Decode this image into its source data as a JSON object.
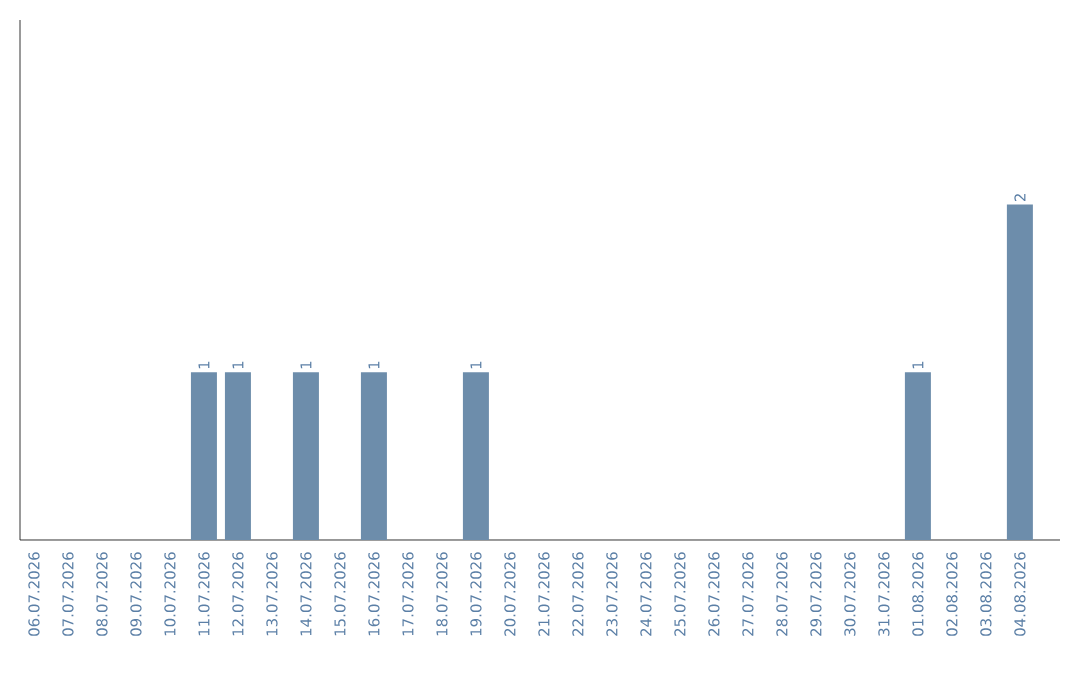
{
  "chart_data": {
    "type": "bar",
    "categories": [
      "06.07.2026",
      "07.07.2026",
      "08.07.2026",
      "09.07.2026",
      "10.07.2026",
      "11.07.2026",
      "12.07.2026",
      "13.07.2026",
      "14.07.2026",
      "15.07.2026",
      "16.07.2026",
      "17.07.2026",
      "18.07.2026",
      "19.07.2026",
      "20.07.2026",
      "21.07.2026",
      "22.07.2026",
      "23.07.2026",
      "24.07.2026",
      "25.07.2026",
      "26.07.2026",
      "27.07.2026",
      "28.07.2026",
      "29.07.2026",
      "30.07.2026",
      "31.07.2026",
      "01.08.2026",
      "02.08.2026",
      "03.08.2026",
      "04.08.2026"
    ],
    "values": [
      0,
      0,
      0,
      0,
      0,
      1,
      1,
      0,
      1,
      0,
      1,
      0,
      0,
      1,
      0,
      0,
      0,
      0,
      0,
      0,
      0,
      0,
      0,
      0,
      0,
      0,
      1,
      0,
      0,
      2
    ],
    "value_labels": [
      null,
      null,
      null,
      null,
      null,
      "1",
      "1",
      null,
      "1",
      null,
      "1",
      null,
      null,
      "1",
      null,
      null,
      null,
      null,
      null,
      null,
      null,
      null,
      null,
      null,
      null,
      null,
      "1",
      null,
      null,
      "2"
    ],
    "color": "#6d8dab",
    "ylim": [
      0,
      3.1
    ]
  }
}
